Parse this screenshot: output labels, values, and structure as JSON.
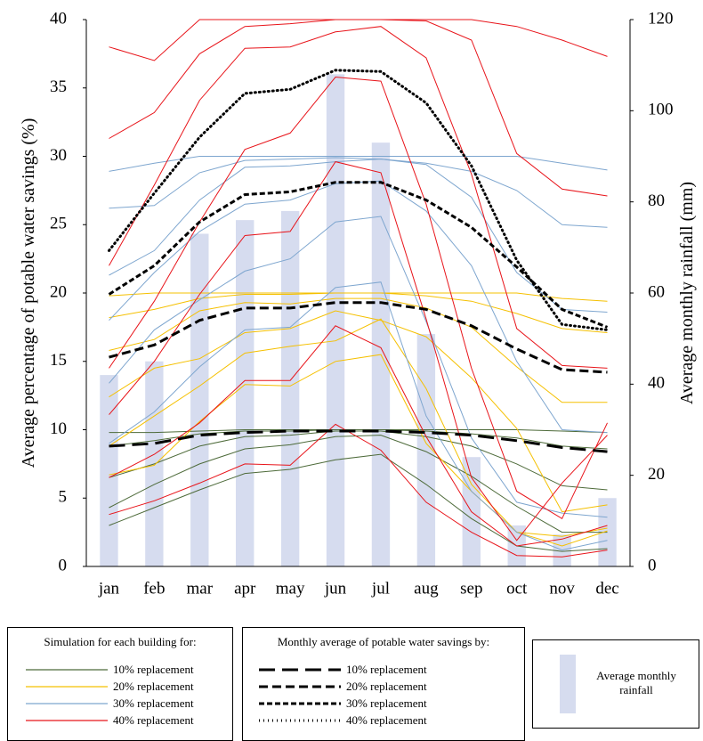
{
  "chart_data": {
    "type": "line",
    "categories": [
      "jan",
      "feb",
      "mar",
      "apr",
      "may",
      "jun",
      "jul",
      "aug",
      "sep",
      "oct",
      "nov",
      "dec"
    ],
    "y_label": "Average percentage of potable water savings (%)",
    "y2_label": "Average monthly rainfall (mm)",
    "ylim": [
      0,
      40
    ],
    "yticks": [
      0,
      5,
      10,
      15,
      20,
      25,
      30,
      35,
      40
    ],
    "y2lim": [
      0,
      120
    ],
    "y2ticks": [
      0,
      20,
      40,
      60,
      80,
      100,
      120
    ],
    "rainfall": {
      "type": "bar",
      "name": "Average monthly rainfall",
      "axis": "y2",
      "color": "#d6dcef",
      "values": [
        42,
        45,
        73,
        76,
        78,
        108,
        93,
        51,
        24,
        9,
        7,
        15
      ]
    },
    "building_legend_title": "Simulation for each building for:",
    "average_legend_title": "Monthly average of potable water savings by:",
    "building_groups": [
      {
        "name": "10% replacement",
        "color": "#4e6b3a",
        "lines": [
          [
            9.8,
            9.8,
            9.9,
            10,
            10,
            10,
            10,
            10,
            10,
            10,
            9.9,
            9.8
          ],
          [
            8.8,
            9.2,
            9.7,
            9.9,
            9.9,
            10,
            10,
            9.9,
            9.7,
            9.4,
            8.8,
            8.6
          ],
          [
            6.5,
            7.5,
            8.8,
            9.5,
            9.6,
            9.9,
            9.9,
            9.5,
            8.8,
            7.5,
            5.9,
            5.6
          ],
          [
            4.3,
            6,
            7.5,
            8.6,
            8.9,
            9.5,
            9.6,
            8.4,
            6.6,
            4.4,
            2.5,
            2.5
          ],
          [
            3.0,
            4.3,
            5.6,
            6.8,
            7.1,
            7.8,
            8.2,
            6.0,
            3.5,
            1.5,
            1.1,
            1.3
          ]
        ]
      },
      {
        "name": "20% replacement",
        "color": "#f5c000",
        "lines": [
          [
            19.8,
            20,
            20,
            20,
            20,
            20,
            20,
            20,
            20,
            20,
            19.6,
            19.4
          ],
          [
            18.2,
            18.8,
            19.6,
            19.9,
            19.9,
            20,
            20,
            19.8,
            19.4,
            18.5,
            17.4,
            17.1
          ],
          [
            15.8,
            16.6,
            18.7,
            19.3,
            19.2,
            19.6,
            19.6,
            18.9,
            17.5,
            14.6,
            12.0,
            12.0
          ],
          [
            12.4,
            14.5,
            15.2,
            17.1,
            17.4,
            18.7,
            18.0,
            16.8,
            13.8,
            10.1,
            4.0,
            4.5
          ],
          [
            8.8,
            11.0,
            13.2,
            15.6,
            16.1,
            16.5,
            18.1,
            13.0,
            6.0,
            2.5,
            2.2,
            2.8
          ],
          [
            6.7,
            7.4,
            10.6,
            13.3,
            13.2,
            15.0,
            15.5,
            9.0,
            5.5,
            2.5,
            1.5,
            2.6
          ]
        ]
      },
      {
        "name": "30% replacement",
        "color": "#7ea6cf",
        "lines": [
          [
            28.9,
            29.5,
            30,
            30,
            30,
            30,
            30,
            30,
            30,
            30,
            29.5,
            29
          ],
          [
            26.2,
            26.4,
            28.8,
            29.7,
            29.8,
            29.9,
            29.8,
            29.5,
            28.9,
            27.5,
            25.0,
            24.8
          ],
          [
            21.3,
            23.1,
            26.8,
            29.2,
            29.3,
            29.6,
            29.8,
            29.4,
            27.0,
            21.5,
            18.8,
            18.6
          ],
          [
            18.0,
            21.5,
            24.5,
            26.5,
            26.8,
            28.0,
            28.2,
            26.0,
            22.0,
            15.0,
            10.0,
            9.8
          ],
          [
            13.4,
            17.3,
            19.5,
            21.6,
            22.5,
            25.2,
            25.6,
            17.9,
            9.4,
            4.7,
            3.9,
            3.6
          ],
          [
            9.0,
            11.3,
            14.6,
            17.3,
            17.5,
            20.4,
            20.8,
            11.0,
            5.5,
            2.5,
            1.2,
            1.9
          ]
        ]
      },
      {
        "name": "40% replacement",
        "color": "#e8141a",
        "lines": [
          [
            38.0,
            37.0,
            40,
            40,
            40,
            40,
            40,
            40,
            40,
            39.5,
            38.5,
            37.3
          ],
          [
            31.3,
            33.2,
            37.5,
            39.5,
            39.7,
            40,
            40,
            39.9,
            38.5,
            30.2,
            27.6,
            27.1
          ],
          [
            22.0,
            27.9,
            34.1,
            37.9,
            38.0,
            39.1,
            39.5,
            37.2,
            28.7,
            17.4,
            14.7,
            14.5
          ],
          [
            14.5,
            19.4,
            25.2,
            30.5,
            31.7,
            35.8,
            35.5,
            26.5,
            14.5,
            5.5,
            3.5,
            10.5
          ],
          [
            11.1,
            15.0,
            19.9,
            24.2,
            24.5,
            29.6,
            28.8,
            18.1,
            6.5,
            1.9,
            6.1,
            9.6
          ],
          [
            6.5,
            8.2,
            10.5,
            13.6,
            13.6,
            17.6,
            16.0,
            9.5,
            4.0,
            1.5,
            2.0,
            3.0
          ],
          [
            3.8,
            4.8,
            6.1,
            7.5,
            7.4,
            10.4,
            8.5,
            4.7,
            2.5,
            0.8,
            0.7,
            1.2
          ]
        ]
      }
    ],
    "averages": [
      {
        "name": "10% replacement",
        "color": "#000000",
        "dash": "18,8",
        "values": [
          8.8,
          9.0,
          9.6,
          9.8,
          9.9,
          9.9,
          9.9,
          9.8,
          9.6,
          9.2,
          8.7,
          8.4
        ]
      },
      {
        "name": "20% replacement",
        "color": "#000000",
        "dash": "10,5",
        "values": [
          15.3,
          16.2,
          18.0,
          18.9,
          18.9,
          19.3,
          19.3,
          18.8,
          17.6,
          15.9,
          14.4,
          14.2
        ]
      },
      {
        "name": "30% replacement",
        "color": "#000000",
        "dash": "6,3",
        "values": [
          19.9,
          22.0,
          25.2,
          27.2,
          27.4,
          28.1,
          28.1,
          26.8,
          24.8,
          21.9,
          18.8,
          17.5
        ]
      },
      {
        "name": "40% replacement",
        "color": "#000000",
        "dash": "1,4",
        "values": [
          23.1,
          27.3,
          31.4,
          34.6,
          34.9,
          36.3,
          36.2,
          33.9,
          29.3,
          22.4,
          17.7,
          17.3
        ]
      }
    ]
  }
}
